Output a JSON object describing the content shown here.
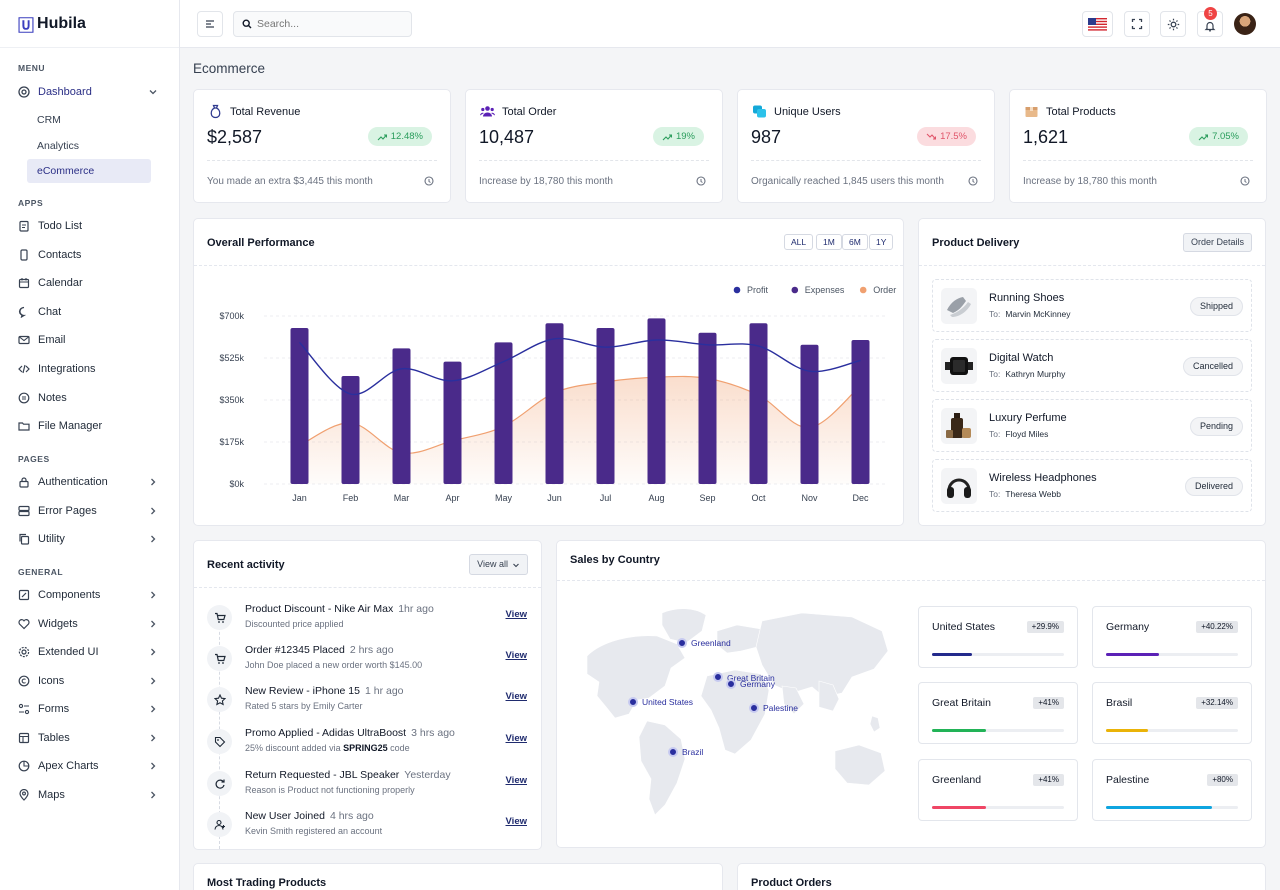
{
  "app": {
    "name": "Hubila"
  },
  "sidebar": {
    "sections": {
      "menu": "MENU",
      "apps": "APPS",
      "pages": "PAGES",
      "general": "GENERAL"
    },
    "dashboard": "Dashboard",
    "sub": [
      "CRM",
      "Analytics",
      "eCommerce"
    ],
    "apps": [
      "Todo List",
      "Contacts",
      "Calendar",
      "Chat",
      "Email",
      "Integrations",
      "Notes",
      "File Manager"
    ],
    "pages": [
      "Authentication",
      "Error Pages",
      "Utility"
    ],
    "general": [
      "Components",
      "Widgets",
      "Extended UI",
      "Icons",
      "Forms",
      "Tables",
      "Apex Charts",
      "Maps"
    ]
  },
  "topbar": {
    "search_placeholder": "Search...",
    "notifications": "5"
  },
  "page": {
    "title": "Ecommerce"
  },
  "stats": [
    {
      "label": "Total Revenue",
      "value": "$2,587",
      "change": "12.48%",
      "trend": "up",
      "note": "You made an extra $3,445 this month"
    },
    {
      "label": "Total Order",
      "value": "10,487",
      "change": "19%",
      "trend": "up",
      "note": "Increase by 18,780 this month"
    },
    {
      "label": "Unique Users",
      "value": "987",
      "change": "17.5%",
      "trend": "down",
      "note": "Organically reached 1,845 users this month"
    },
    {
      "label": "Total Products",
      "value": "1,621",
      "change": "7.05%",
      "trend": "up",
      "note": "Increase by 18,780 this month"
    }
  ],
  "performance": {
    "title": "Overall Performance",
    "ranges": [
      "ALL",
      "1M",
      "6M",
      "1Y"
    ]
  },
  "chart_data": {
    "type": "bar",
    "title": "Overall Performance",
    "categories": [
      "Jan",
      "Feb",
      "Mar",
      "Apr",
      "May",
      "Jun",
      "Jul",
      "Aug",
      "Sep",
      "Oct",
      "Nov",
      "Dec"
    ],
    "legend": [
      "Profit",
      "Expenses",
      "Order"
    ],
    "yticks": [
      "$700k",
      "$525k",
      "$350k",
      "$175k",
      "$0k"
    ],
    "ylim": [
      0,
      700
    ],
    "series": [
      {
        "name": "Expenses",
        "type": "bar",
        "color": "#4a2a8a",
        "values": [
          650,
          450,
          565,
          510,
          590,
          670,
          650,
          690,
          630,
          670,
          580,
          600
        ]
      },
      {
        "name": "Profit",
        "type": "line",
        "color": "#2a2f9e",
        "values": [
          590,
          375,
          480,
          430,
          510,
          605,
          570,
          600,
          580,
          575,
          470,
          515
        ]
      },
      {
        "name": "Order",
        "type": "area",
        "color": "#f0a070",
        "values": [
          160,
          255,
          130,
          180,
          240,
          380,
          425,
          445,
          440,
          370,
          235,
          410
        ]
      }
    ]
  },
  "delivery": {
    "title": "Product Delivery",
    "details_label": "Order Details",
    "to_label": "To:",
    "items": [
      {
        "name": "Running Shoes",
        "to": "Marvin McKinney",
        "status": "Shipped"
      },
      {
        "name": "Digital Watch",
        "to": "Kathryn Murphy",
        "status": "Cancelled"
      },
      {
        "name": "Luxury Perfume",
        "to": "Floyd Miles",
        "status": "Pending"
      },
      {
        "name": "Wireless Headphones",
        "to": "Theresa Webb",
        "status": "Delivered"
      }
    ]
  },
  "activity": {
    "title": "Recent activity",
    "view_all": "View all",
    "view_label": "View",
    "items": [
      {
        "title": "Product Discount - Nike Air Max",
        "time": "1hr ago",
        "desc": "Discounted price applied",
        "desc_bold": "",
        "desc_tail": ""
      },
      {
        "title": "Order #12345 Placed",
        "time": "2 hrs ago",
        "desc": "John Doe placed a new order worth $145.00",
        "desc_bold": "",
        "desc_tail": ""
      },
      {
        "title": "New Review - iPhone 15",
        "time": "1 hr ago",
        "desc": "Rated 5 stars by Emily Carter",
        "desc_bold": "",
        "desc_tail": ""
      },
      {
        "title": "Promo Applied - Adidas UltraBoost",
        "time": "3 hrs ago",
        "desc": "25% discount added via",
        "desc_bold": "SPRING25",
        "desc_tail": "code"
      },
      {
        "title": "Return Requested - JBL Speaker",
        "time": "Yesterday",
        "desc": "Reason is Product not functioning properly",
        "desc_bold": "",
        "desc_tail": ""
      },
      {
        "title": "New User Joined",
        "time": "4 hrs ago",
        "desc": "Kevin Smith registered an account",
        "desc_bold": "",
        "desc_tail": ""
      }
    ]
  },
  "sales": {
    "title": "Sales by Country",
    "map_markers": [
      "Greenland",
      "Great Britain",
      "Germany",
      "United States",
      "Palestine",
      "Brazil"
    ],
    "countries": [
      {
        "name": "United States",
        "change": "+29.9%",
        "progress": 0.3,
        "color": "#232a8c"
      },
      {
        "name": "Germany",
        "change": "+40.22%",
        "progress": 0.4,
        "color": "#5b21b6"
      },
      {
        "name": "Great Britain",
        "change": "+41%",
        "progress": 0.41,
        "color": "#22b357"
      },
      {
        "name": "Brasil",
        "change": "+32.14%",
        "progress": 0.32,
        "color": "#eab308"
      },
      {
        "name": "Greenland",
        "change": "+41%",
        "progress": 0.41,
        "color": "#ef4665"
      },
      {
        "name": "Palestine",
        "change": "+80%",
        "progress": 0.8,
        "color": "#0ea5e0"
      }
    ]
  },
  "bottom": {
    "trading": "Most Trading Products",
    "orders": "Product Orders"
  }
}
